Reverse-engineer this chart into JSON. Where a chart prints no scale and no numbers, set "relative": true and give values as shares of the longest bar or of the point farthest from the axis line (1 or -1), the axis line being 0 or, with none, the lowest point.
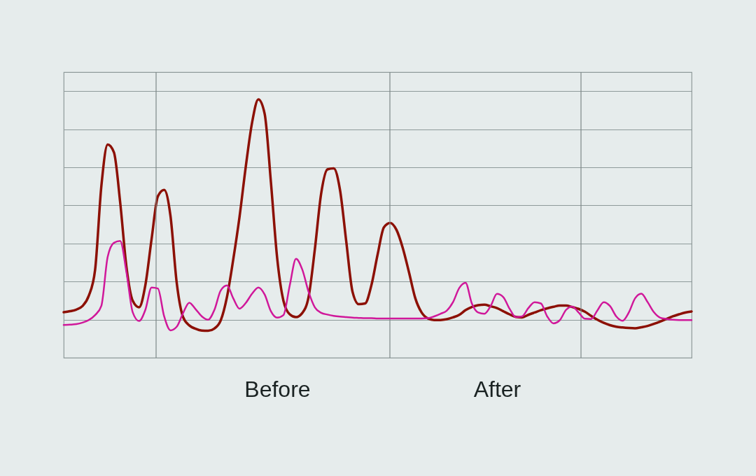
{
  "chart_data": {
    "type": "line",
    "relative": true,
    "grid": "y",
    "categories": [
      null,
      null,
      null,
      null,
      null,
      null,
      null,
      null,
      null,
      null,
      null,
      null,
      null,
      null,
      null,
      null,
      null,
      null,
      null,
      null,
      null,
      null,
      null,
      null,
      null,
      null,
      null,
      null,
      null,
      null,
      null,
      null,
      null,
      null,
      "Before",
      null,
      null,
      null,
      null,
      null,
      null,
      null,
      null,
      null,
      null,
      null,
      null,
      null,
      null,
      null,
      null,
      null,
      null,
      null,
      null,
      null,
      null,
      null,
      null,
      null,
      null,
      null,
      null,
      null,
      null,
      null,
      null,
      null,
      null,
      "After",
      null,
      null,
      null,
      null,
      null,
      null,
      null,
      null,
      null,
      null,
      null,
      null,
      null,
      null,
      null,
      null,
      null,
      null,
      null,
      null,
      null,
      null,
      null,
      null,
      null,
      null,
      null,
      null,
      null,
      null,
      null
    ],
    "series": [
      {
        "color": "#8c1004",
        "values": [
          0.176,
          0.18,
          0.186,
          0.2,
          0.24,
          0.34,
          0.665,
          0.825,
          0.795,
          0.6,
          0.35,
          0.22,
          0.195,
          0.28,
          0.46,
          0.625,
          0.65,
          0.55,
          0.29,
          0.158,
          0.125,
          0.112,
          0.105,
          0.104,
          0.113,
          0.144,
          0.235,
          0.38,
          0.545,
          0.74,
          0.91,
          1.0,
          0.945,
          0.68,
          0.385,
          0.22,
          0.168,
          0.157,
          0.173,
          0.235,
          0.42,
          0.635,
          0.729,
          0.733,
          0.65,
          0.45,
          0.255,
          0.207,
          0.21,
          0.28,
          0.4,
          0.505,
          0.522,
          0.495,
          0.425,
          0.33,
          0.23,
          0.175,
          0.152,
          0.146,
          0.146,
          0.149,
          0.156,
          0.166,
          0.184,
          0.196,
          0.203,
          0.205,
          0.199,
          0.192,
          0.18,
          0.168,
          0.158,
          0.156,
          0.166,
          0.175,
          0.184,
          0.191,
          0.197,
          0.202,
          0.202,
          0.196,
          0.189,
          0.178,
          0.162,
          0.147,
          0.135,
          0.126,
          0.12,
          0.117,
          0.115,
          0.114,
          0.118,
          0.123,
          0.131,
          0.14,
          0.15,
          0.16,
          0.168,
          0.175,
          0.179
        ]
      },
      {
        "color": "#d0189a",
        "values": [
          0.127,
          0.128,
          0.13,
          0.136,
          0.146,
          0.165,
          0.201,
          0.39,
          0.445,
          0.452,
          0.33,
          0.175,
          0.142,
          0.185,
          0.272,
          0.268,
          0.16,
          0.106,
          0.12,
          0.172,
          0.213,
          0.188,
          0.16,
          0.147,
          0.185,
          0.26,
          0.28,
          0.23,
          0.19,
          0.212,
          0.248,
          0.272,
          0.245,
          0.18,
          0.155,
          0.165,
          0.28,
          0.383,
          0.341,
          0.255,
          0.195,
          0.174,
          0.167,
          0.162,
          0.159,
          0.157,
          0.155,
          0.154,
          0.153,
          0.153,
          0.152,
          0.152,
          0.152,
          0.152,
          0.152,
          0.152,
          0.152,
          0.152,
          0.153,
          0.16,
          0.17,
          0.182,
          0.215,
          0.27,
          0.29,
          0.21,
          0.175,
          0.17,
          0.2,
          0.247,
          0.235,
          0.19,
          0.157,
          0.16,
          0.192,
          0.215,
          0.21,
          0.16,
          0.133,
          0.145,
          0.185,
          0.198,
          0.175,
          0.151,
          0.15,
          0.183,
          0.215,
          0.2,
          0.16,
          0.143,
          0.175,
          0.23,
          0.248,
          0.215,
          0.176,
          0.155,
          0.15,
          0.147,
          0.146,
          0.146,
          0.146
        ]
      }
    ]
  }
}
